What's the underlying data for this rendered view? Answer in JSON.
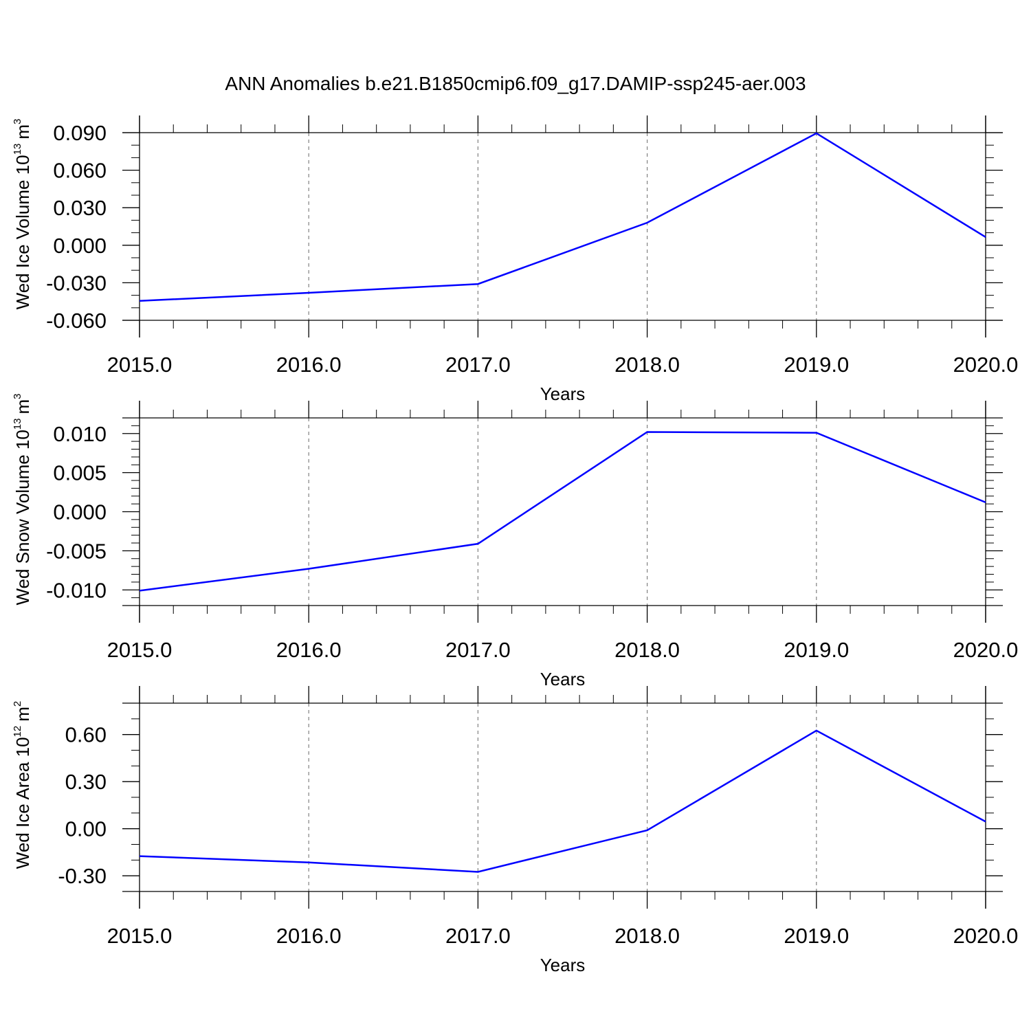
{
  "figure": {
    "title": "ANN Anomalies b.e21.B1850cmip6.f09_g17.DAMIP-ssp245-aer.003",
    "line_color": "#0000ff",
    "grid_color": "#808080",
    "axis_color": "#000000"
  },
  "chart_data": [
    {
      "type": "line",
      "ylabel": {
        "text": "Wed Ice Volume 10",
        "exponent": "13",
        "unit": "m",
        "unit_exponent": "3"
      },
      "xlabel": "Years",
      "x": [
        2015,
        2016,
        2017,
        2018,
        2019,
        2020
      ],
      "xticks": [
        "2015.0",
        "2016.0",
        "2017.0",
        "2018.0",
        "2019.0",
        "2020.0"
      ],
      "xlim": [
        2015,
        2020
      ],
      "ylim": [
        -0.06,
        0.09
      ],
      "yticks": [
        0.09,
        0.06,
        0.03,
        0.0,
        -0.03,
        -0.06
      ],
      "ytick_labels": [
        "0.090",
        "0.060",
        "0.030",
        "0.000",
        "-0.030",
        "-0.060"
      ],
      "y_minor_step": 0.01,
      "series": [
        {
          "values": [
            -0.0445,
            -0.038,
            -0.031,
            0.018,
            0.0895,
            0.0065
          ]
        }
      ],
      "grid": "vertical dashed at major x ticks"
    },
    {
      "type": "line",
      "ylabel": {
        "text": "Wed Snow Volume 10",
        "exponent": "13",
        "unit": "m",
        "unit_exponent": "3"
      },
      "xlabel": "Years",
      "x": [
        2015,
        2016,
        2017,
        2018,
        2019,
        2020
      ],
      "xticks": [
        "2015.0",
        "2016.0",
        "2017.0",
        "2018.0",
        "2019.0",
        "2020.0"
      ],
      "xlim": [
        2015,
        2020
      ],
      "ylim": [
        -0.012,
        0.012
      ],
      "yticks": [
        0.01,
        0.005,
        0.0,
        -0.005,
        -0.01
      ],
      "ytick_labels": [
        "0.010",
        "0.005",
        "0.000",
        "-0.005",
        "-0.010"
      ],
      "y_minor_step": 0.001,
      "series": [
        {
          "values": [
            -0.0101,
            -0.0073,
            -0.0041,
            0.0102,
            0.0101,
            0.0012
          ]
        }
      ],
      "grid": "vertical dashed at major x ticks"
    },
    {
      "type": "line",
      "ylabel": {
        "text": "Wed Ice Area 10",
        "exponent": "12",
        "unit": "m",
        "unit_exponent": "2"
      },
      "xlabel": "Years",
      "x": [
        2015,
        2016,
        2017,
        2018,
        2019,
        2020
      ],
      "xticks": [
        "2015.0",
        "2016.0",
        "2017.0",
        "2018.0",
        "2019.0",
        "2020.0"
      ],
      "xlim": [
        2015,
        2020
      ],
      "ylim": [
        -0.4,
        0.8
      ],
      "yticks": [
        0.6,
        0.3,
        0.0,
        -0.3
      ],
      "ytick_labels": [
        "0.60",
        "0.30",
        "0.00",
        "-0.30"
      ],
      "y_minor_step": 0.1,
      "series": [
        {
          "values": [
            -0.175,
            -0.215,
            -0.275,
            -0.01,
            0.625,
            0.045
          ]
        }
      ],
      "grid": "vertical dashed at major x ticks"
    }
  ]
}
